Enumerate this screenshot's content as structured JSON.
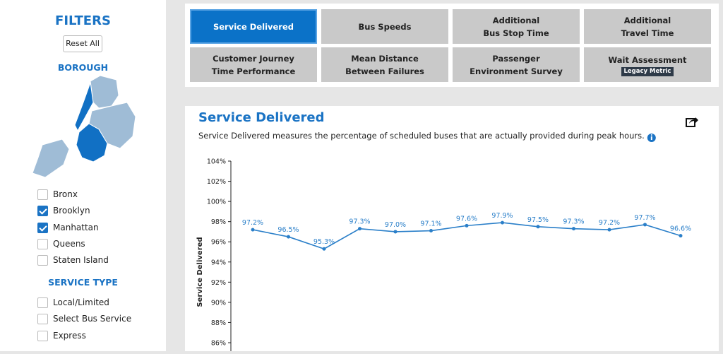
{
  "sidebar": {
    "title": "FILTERS",
    "reset": "Reset All",
    "borough": {
      "heading": "BOROUGH",
      "options": [
        {
          "label": "Bronx",
          "checked": false
        },
        {
          "label": "Brooklyn",
          "checked": true
        },
        {
          "label": "Manhattan",
          "checked": true
        },
        {
          "label": "Queens",
          "checked": false
        },
        {
          "label": "Staten Island",
          "checked": false
        }
      ]
    },
    "service_type": {
      "heading": "SERVICE TYPE",
      "options": [
        {
          "label": "Local/Limited",
          "checked": false
        },
        {
          "label": "Select Bus Service",
          "checked": false
        },
        {
          "label": "Express",
          "checked": false
        }
      ]
    }
  },
  "tabs": {
    "active": 0,
    "items": [
      {
        "lines": [
          "Service Delivered"
        ]
      },
      {
        "lines": [
          "Bus Speeds"
        ]
      },
      {
        "lines": [
          "Additional",
          "Bus Stop Time"
        ]
      },
      {
        "lines": [
          "Additional",
          "Travel Time"
        ]
      },
      {
        "lines": [
          "Customer Journey",
          "Time Performance"
        ]
      },
      {
        "lines": [
          "Mean Distance",
          "Between Failures"
        ]
      },
      {
        "lines": [
          "Passenger",
          "Environment Survey"
        ]
      },
      {
        "lines": [
          "Wait Assessment"
        ],
        "badge": "Legacy Metric"
      }
    ]
  },
  "chart_data": {
    "type": "line",
    "title": "Service Delivered",
    "subtitle": "Service Delivered measures the percentage of scheduled buses that are actually provided during peak hours.",
    "y_label": "Service Delivered",
    "color": "#2a7fc9",
    "values": [
      97.2,
      96.5,
      95.3,
      97.3,
      97.0,
      97.1,
      97.6,
      97.9,
      97.5,
      97.3,
      97.2,
      97.7,
      96.6
    ],
    "value_labels": [
      "97.2%",
      "96.5%",
      "95.3%",
      "97.3%",
      "97.0%",
      "97.1%",
      "97.6%",
      "97.9%",
      "97.5%",
      "97.3%",
      "97.2%",
      "97.7%",
      "96.6%"
    ],
    "ylim": [
      86,
      104
    ],
    "yticks": [
      {
        "value": 86,
        "label": "86%"
      },
      {
        "value": 88,
        "label": "88%"
      },
      {
        "value": 90,
        "label": "90%"
      },
      {
        "value": 92,
        "label": "92%"
      },
      {
        "value": 94,
        "label": "94%"
      },
      {
        "value": 96,
        "label": "96%"
      },
      {
        "value": 98,
        "label": "98%"
      },
      {
        "value": 100,
        "label": "100%"
      },
      {
        "value": 102,
        "label": "102%"
      },
      {
        "value": 104,
        "label": "104%"
      }
    ]
  }
}
